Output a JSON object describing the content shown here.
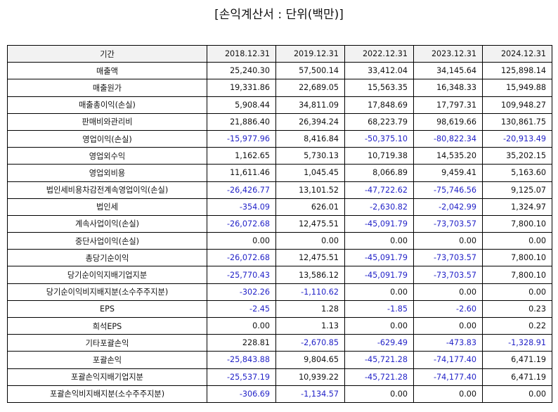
{
  "title": "[손익계산서 : 단위(백만)]",
  "table": {
    "header": [
      "기간",
      "2018.12.31",
      "2019.12.31",
      "2022.12.31",
      "2023.12.31",
      "2024.12.31"
    ],
    "rows": [
      {
        "label": "매출액",
        "values": [
          "25,240.30",
          "57,500.14",
          "33,412.04",
          "34,145.64",
          "125,898.14"
        ]
      },
      {
        "label": "매출원가",
        "values": [
          "19,331.86",
          "22,689.05",
          "15,563.35",
          "16,348.33",
          "15,949.88"
        ]
      },
      {
        "label": "매출총이익(손실)",
        "values": [
          "5,908.44",
          "34,811.09",
          "17,848.69",
          "17,797.31",
          "109,948.27"
        ]
      },
      {
        "label": "판매비와관리비",
        "values": [
          "21,886.40",
          "26,394.24",
          "68,223.79",
          "98,619.66",
          "130,861.75"
        ]
      },
      {
        "label": "영업이익(손실)",
        "values": [
          "-15,977.96",
          "8,416.84",
          "-50,375.10",
          "-80,822.34",
          "-20,913.49"
        ]
      },
      {
        "label": "영업외수익",
        "values": [
          "1,162.65",
          "5,730.13",
          "10,719.38",
          "14,535.20",
          "35,202.15"
        ]
      },
      {
        "label": "영업외비용",
        "values": [
          "11,611.46",
          "1,045.45",
          "8,066.89",
          "9,459.41",
          "5,163.60"
        ]
      },
      {
        "label": "법인세비용차감전계속영업이익(손실)",
        "values": [
          "-26,426.77",
          "13,101.52",
          "-47,722.62",
          "-75,746.56",
          "9,125.07"
        ]
      },
      {
        "label": "법인세",
        "values": [
          "-354.09",
          "626.01",
          "-2,630.82",
          "-2,042.99",
          "1,324.97"
        ]
      },
      {
        "label": "계속사업이익(손실)",
        "values": [
          "-26,072.68",
          "12,475.51",
          "-45,091.79",
          "-73,703.57",
          "7,800.10"
        ]
      },
      {
        "label": "중단사업이익(손실)",
        "values": [
          "0.00",
          "0.00",
          "0.00",
          "0.00",
          "0.00"
        ]
      },
      {
        "label": "총당기순이익",
        "values": [
          "-26,072.68",
          "12,475.51",
          "-45,091.79",
          "-73,703.57",
          "7,800.10"
        ]
      },
      {
        "label": "당기순이익지배기업지분",
        "values": [
          "-25,770.43",
          "13,586.12",
          "-45,091.79",
          "-73,703.57",
          "7,800.10"
        ]
      },
      {
        "label": "당기순이익비지배지분(소수주주지분)",
        "values": [
          "-302.26",
          "-1,110.62",
          "0.00",
          "0.00",
          "0.00"
        ]
      },
      {
        "label": "EPS",
        "values": [
          "-2.45",
          "1.28",
          "-1.85",
          "-2.60",
          "0.23"
        ]
      },
      {
        "label": "희석EPS",
        "values": [
          "0.00",
          "1.13",
          "0.00",
          "0.00",
          "0.22"
        ]
      },
      {
        "label": "기타포괄손익",
        "values": [
          "228.81",
          "-2,670.85",
          "-629.49",
          "-473.83",
          "-1,328.91"
        ]
      },
      {
        "label": "포괄손익",
        "values": [
          "-25,843.88",
          "9,804.65",
          "-45,721.28",
          "-74,177.40",
          "6,471.19"
        ]
      },
      {
        "label": "포괄손익지배기업지분",
        "values": [
          "-25,537.19",
          "10,939.22",
          "-45,721.28",
          "-74,177.40",
          "6,471.19"
        ]
      },
      {
        "label": "포괄손익비지배지분(소수주주지분)",
        "values": [
          "-306.69",
          "-1,134.57",
          "0.00",
          "0.00",
          "0.00"
        ]
      }
    ]
  },
  "colors": {
    "negative": "#2323c8",
    "header_bg": "#f2f2f2",
    "border": "#000000"
  }
}
